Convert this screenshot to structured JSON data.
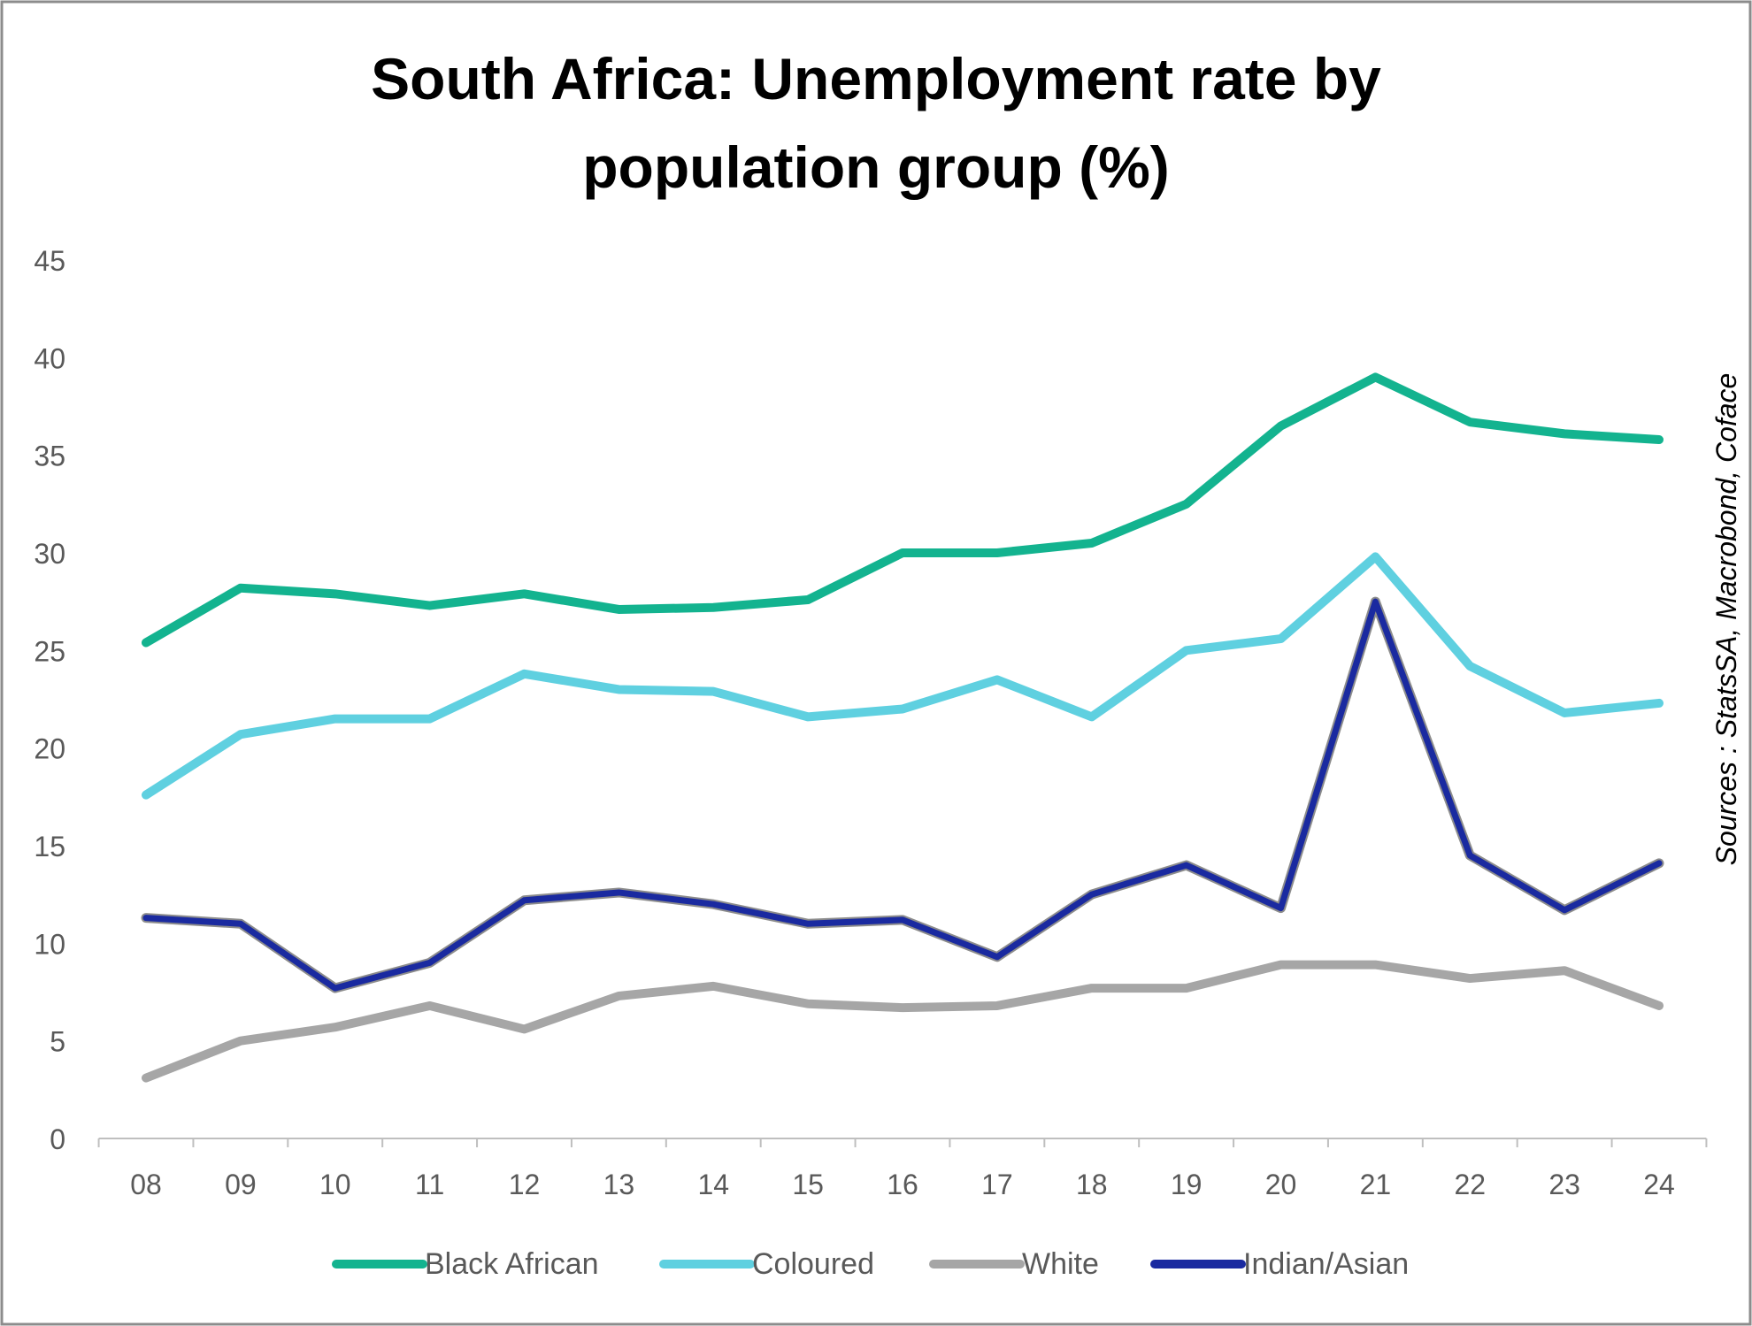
{
  "chart_data": {
    "type": "line",
    "title_lines": [
      "South Africa: Unemployment rate by",
      "population group (%)"
    ],
    "source": "Sources : StatsSA, Macrobond, Coface",
    "categories": [
      "08",
      "09",
      "10",
      "11",
      "12",
      "13",
      "14",
      "15",
      "16",
      "17",
      "18",
      "19",
      "20",
      "21",
      "22",
      "23",
      "24"
    ],
    "ylim": [
      0,
      45
    ],
    "yticks": [
      0,
      5,
      10,
      15,
      20,
      25,
      30,
      35,
      40,
      45
    ],
    "grid": false,
    "legend_position": "bottom",
    "series": [
      {
        "name": "Black African",
        "color": "#13b38f",
        "values": [
          25.4,
          28.2,
          27.9,
          27.3,
          27.9,
          27.1,
          27.2,
          27.6,
          30.0,
          30.0,
          30.5,
          32.5,
          36.5,
          39.0,
          36.7,
          36.1,
          35.8
        ]
      },
      {
        "name": "Coloured",
        "color": "#5fd0e0",
        "values": [
          17.6,
          20.7,
          21.5,
          21.5,
          23.8,
          23.0,
          22.9,
          21.6,
          22.0,
          23.5,
          21.6,
          25.0,
          25.6,
          29.8,
          24.2,
          21.8,
          22.3
        ]
      },
      {
        "name": "White",
        "color": "#a6a6a6",
        "values": [
          3.1,
          5.0,
          5.7,
          6.8,
          5.6,
          7.3,
          7.8,
          6.9,
          6.7,
          6.8,
          7.7,
          7.7,
          8.9,
          8.9,
          8.2,
          8.6,
          6.8
        ]
      },
      {
        "name": "Indian/Asian",
        "color": "#1a2aa0",
        "values": [
          11.3,
          11.0,
          7.7,
          9.0,
          12.2,
          12.6,
          12.0,
          11.0,
          11.2,
          9.3,
          12.5,
          14.0,
          11.8,
          27.5,
          14.5,
          11.7,
          14.1
        ]
      }
    ]
  }
}
